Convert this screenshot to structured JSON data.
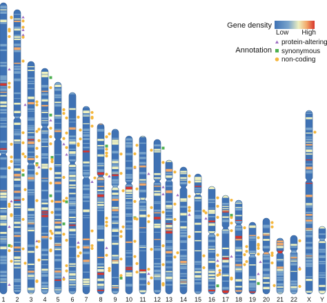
{
  "legend": {
    "density_title": "Gene density",
    "density_low": "Low",
    "density_high": "High",
    "density_colors": [
      "#3f72b4",
      "#7aa5cc",
      "#eef0c0",
      "#f3a96a",
      "#d7352c"
    ],
    "annotation_title": "Annotation",
    "annotations": [
      {
        "key": "protein-altering",
        "label": "protein-altering",
        "shape": "triangle",
        "color": "#9b6ac0"
      },
      {
        "key": "synonymous",
        "label": "synonymous",
        "shape": "square",
        "color": "#4caf50"
      },
      {
        "key": "non-coding",
        "label": "non-coding",
        "shape": "circle",
        "color": "#f4b63c"
      }
    ]
  },
  "chromosomes": [
    {
      "name": "1",
      "centromere": 0.52,
      "pa": 3,
      "syn": 2,
      "nc": 18
    },
    {
      "name": "2",
      "centromere": 0.38,
      "pa": 4,
      "syn": 1,
      "nc": 20
    },
    {
      "name": "3",
      "centromere": 0.44,
      "pa": 2,
      "syn": 1,
      "nc": 14
    },
    {
      "name": "4",
      "centromere": 0.26,
      "pa": 2,
      "syn": 3,
      "nc": 14
    },
    {
      "name": "5",
      "centromere": 0.27,
      "pa": 2,
      "syn": 2,
      "nc": 12
    },
    {
      "name": "6",
      "centromere": 0.35,
      "pa": 2,
      "syn": 1,
      "nc": 12
    },
    {
      "name": "7",
      "centromere": 0.38,
      "pa": 1,
      "syn": 0,
      "nc": 10
    },
    {
      "name": "8",
      "centromere": 0.31,
      "pa": 1,
      "syn": 1,
      "nc": 10
    },
    {
      "name": "9",
      "centromere": 0.35,
      "pa": 1,
      "syn": 1,
      "nc": 9
    },
    {
      "name": "10",
      "centromere": 0.3,
      "pa": 1,
      "syn": 1,
      "nc": 8
    },
    {
      "name": "11",
      "centromere": 0.4,
      "pa": 3,
      "syn": 0,
      "nc": 9
    },
    {
      "name": "12",
      "centromere": 0.27,
      "pa": 2,
      "syn": 1,
      "nc": 10
    },
    {
      "name": "13",
      "centromere": 0.15,
      "pa": 0,
      "syn": 0,
      "nc": 4
    },
    {
      "name": "14",
      "centromere": 0.16,
      "pa": 2,
      "syn": 0,
      "nc": 7
    },
    {
      "name": "15",
      "centromere": 0.17,
      "pa": 0,
      "syn": 0,
      "nc": 3
    },
    {
      "name": "16",
      "centromere": 0.44,
      "pa": 2,
      "syn": 1,
      "nc": 8
    },
    {
      "name": "17",
      "centromere": 0.33,
      "pa": 2,
      "syn": 1,
      "nc": 8
    },
    {
      "name": "18",
      "centromere": 0.26,
      "pa": 0,
      "syn": 0,
      "nc": 3
    },
    {
      "name": "19",
      "centromere": 0.46,
      "pa": 1,
      "syn": 1,
      "nc": 8
    },
    {
      "name": "20",
      "centromere": 0.45,
      "pa": 1,
      "syn": 0,
      "nc": 5
    },
    {
      "name": "21",
      "centromere": 0.26,
      "pa": 0,
      "syn": 0,
      "nc": 1
    },
    {
      "name": "22",
      "centromere": 0.27,
      "pa": 1,
      "syn": 0,
      "nc": 3
    },
    {
      "name": "X",
      "centromere": 0.38,
      "pa": 0,
      "syn": 0,
      "nc": 1
    },
    {
      "name": "Y",
      "centromere": 0.2,
      "pa": 0,
      "syn": 0,
      "nc": 0
    }
  ]
}
